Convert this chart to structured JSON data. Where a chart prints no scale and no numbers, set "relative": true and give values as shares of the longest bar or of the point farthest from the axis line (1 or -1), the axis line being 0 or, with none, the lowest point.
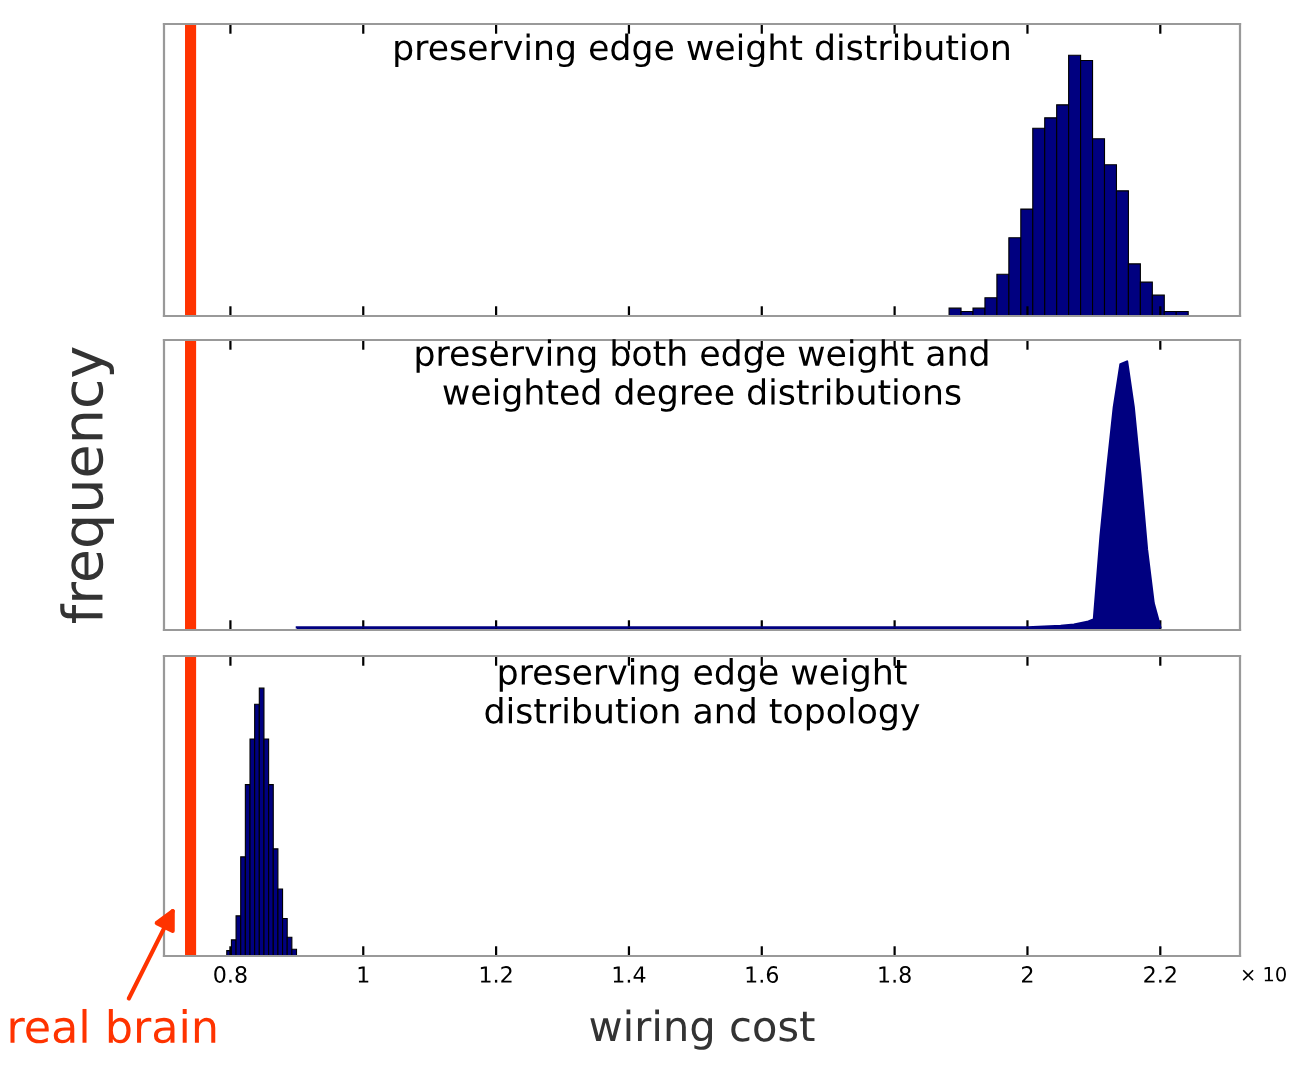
{
  "chart_data": [
    {
      "type": "bar",
      "title": "preserving edge weight distribution",
      "relative": true,
      "color": "#000080",
      "tick_labels": false,
      "xlim": [
        0.7,
        2.32
      ],
      "xticks": [
        {
          "value": 0.8,
          "label": null
        },
        {
          "value": 1,
          "label": null
        },
        {
          "value": 1.2,
          "label": null
        },
        {
          "value": 1.4,
          "label": null
        },
        {
          "value": 1.6,
          "label": null
        },
        {
          "value": 1.8,
          "label": null
        },
        {
          "value": 2,
          "label": null
        },
        {
          "value": 2.2,
          "label": null
        }
      ],
      "x": [
        1.891,
        1.909,
        1.927,
        1.945,
        1.963,
        1.981,
        1.999,
        2.017,
        2.035,
        2.053,
        2.071,
        2.089,
        2.107,
        2.125,
        2.143,
        2.161,
        2.179,
        2.197,
        2.215,
        2.233
      ],
      "values": [
        0.03,
        0.017,
        0.03,
        0.07,
        0.16,
        0.3,
        0.41,
        0.72,
        0.76,
        0.81,
        1,
        0.98,
        0.68,
        0.58,
        0.48,
        0.2,
        0.13,
        0.08,
        0.017,
        0.017
      ],
      "ref_lines": [
        {
          "axis": "x",
          "value": 0.74,
          "color": "#ff3300"
        }
      ]
    },
    {
      "type": "area",
      "title": "preserving both edge weight and\nweighted degree distributions",
      "relative": true,
      "color": "#000080",
      "tick_labels": false,
      "xlim": [
        0.7,
        2.32
      ],
      "xticks": [
        {
          "value": 0.8,
          "label": null
        },
        {
          "value": 1,
          "label": null
        },
        {
          "value": 1.2,
          "label": null
        },
        {
          "value": 1.4,
          "label": null
        },
        {
          "value": 1.6,
          "label": null
        },
        {
          "value": 1.8,
          "label": null
        },
        {
          "value": 2,
          "label": null
        },
        {
          "value": 2.2,
          "label": null
        }
      ],
      "x": [
        0.9,
        0.95,
        1.0,
        1.05,
        1.1,
        1.15,
        1.2,
        1.25,
        1.3,
        1.35,
        1.4,
        1.45,
        1.5,
        1.55,
        1.6,
        1.65,
        1.7,
        1.75,
        1.8,
        1.85,
        1.9,
        1.95,
        2.0,
        2.05,
        2.07,
        2.09,
        2.1,
        2.11,
        2.12,
        2.13,
        2.14,
        2.15,
        2.16,
        2.17,
        2.18,
        2.19,
        2.2
      ],
      "values": [
        0.01,
        0.01,
        0.01,
        0.01,
        0.01,
        0.01,
        0.01,
        0.01,
        0.01,
        0.01,
        0.01,
        0.01,
        0.01,
        0.01,
        0.01,
        0.01,
        0.01,
        0.01,
        0.01,
        0.01,
        0.01,
        0.01,
        0.01,
        0.015,
        0.02,
        0.03,
        0.04,
        0.35,
        0.6,
        0.83,
        0.99,
        1,
        0.83,
        0.58,
        0.3,
        0.1,
        0.01
      ],
      "ylabel": "frequency",
      "ref_lines": [
        {
          "axis": "x",
          "value": 0.74,
          "color": "#ff3300"
        }
      ]
    },
    {
      "type": "bar",
      "title": "preserving edge weight\ndistribution and topology",
      "relative": true,
      "color": "#000080",
      "tick_labels": "x",
      "xlim": [
        0.7,
        2.32
      ],
      "xticks": [
        0.8,
        1,
        1.2,
        1.4,
        1.6,
        1.8,
        2,
        2.2
      ],
      "xlabel": "wiring cost",
      "x": [
        0.798,
        0.805,
        0.812,
        0.819,
        0.826,
        0.833,
        0.84,
        0.847,
        0.854,
        0.861,
        0.868,
        0.875,
        0.882,
        0.889,
        0.896
      ],
      "values": [
        0.02,
        0.06,
        0.15,
        0.37,
        0.64,
        0.81,
        0.94,
        1,
        0.81,
        0.64,
        0.4,
        0.25,
        0.14,
        0.07,
        0.025
      ],
      "annotations": [
        "× 10"
      ],
      "ref_lines": [
        {
          "axis": "x",
          "value": 0.74,
          "label": "real brain",
          "color": "#ff3300"
        }
      ]
    }
  ]
}
